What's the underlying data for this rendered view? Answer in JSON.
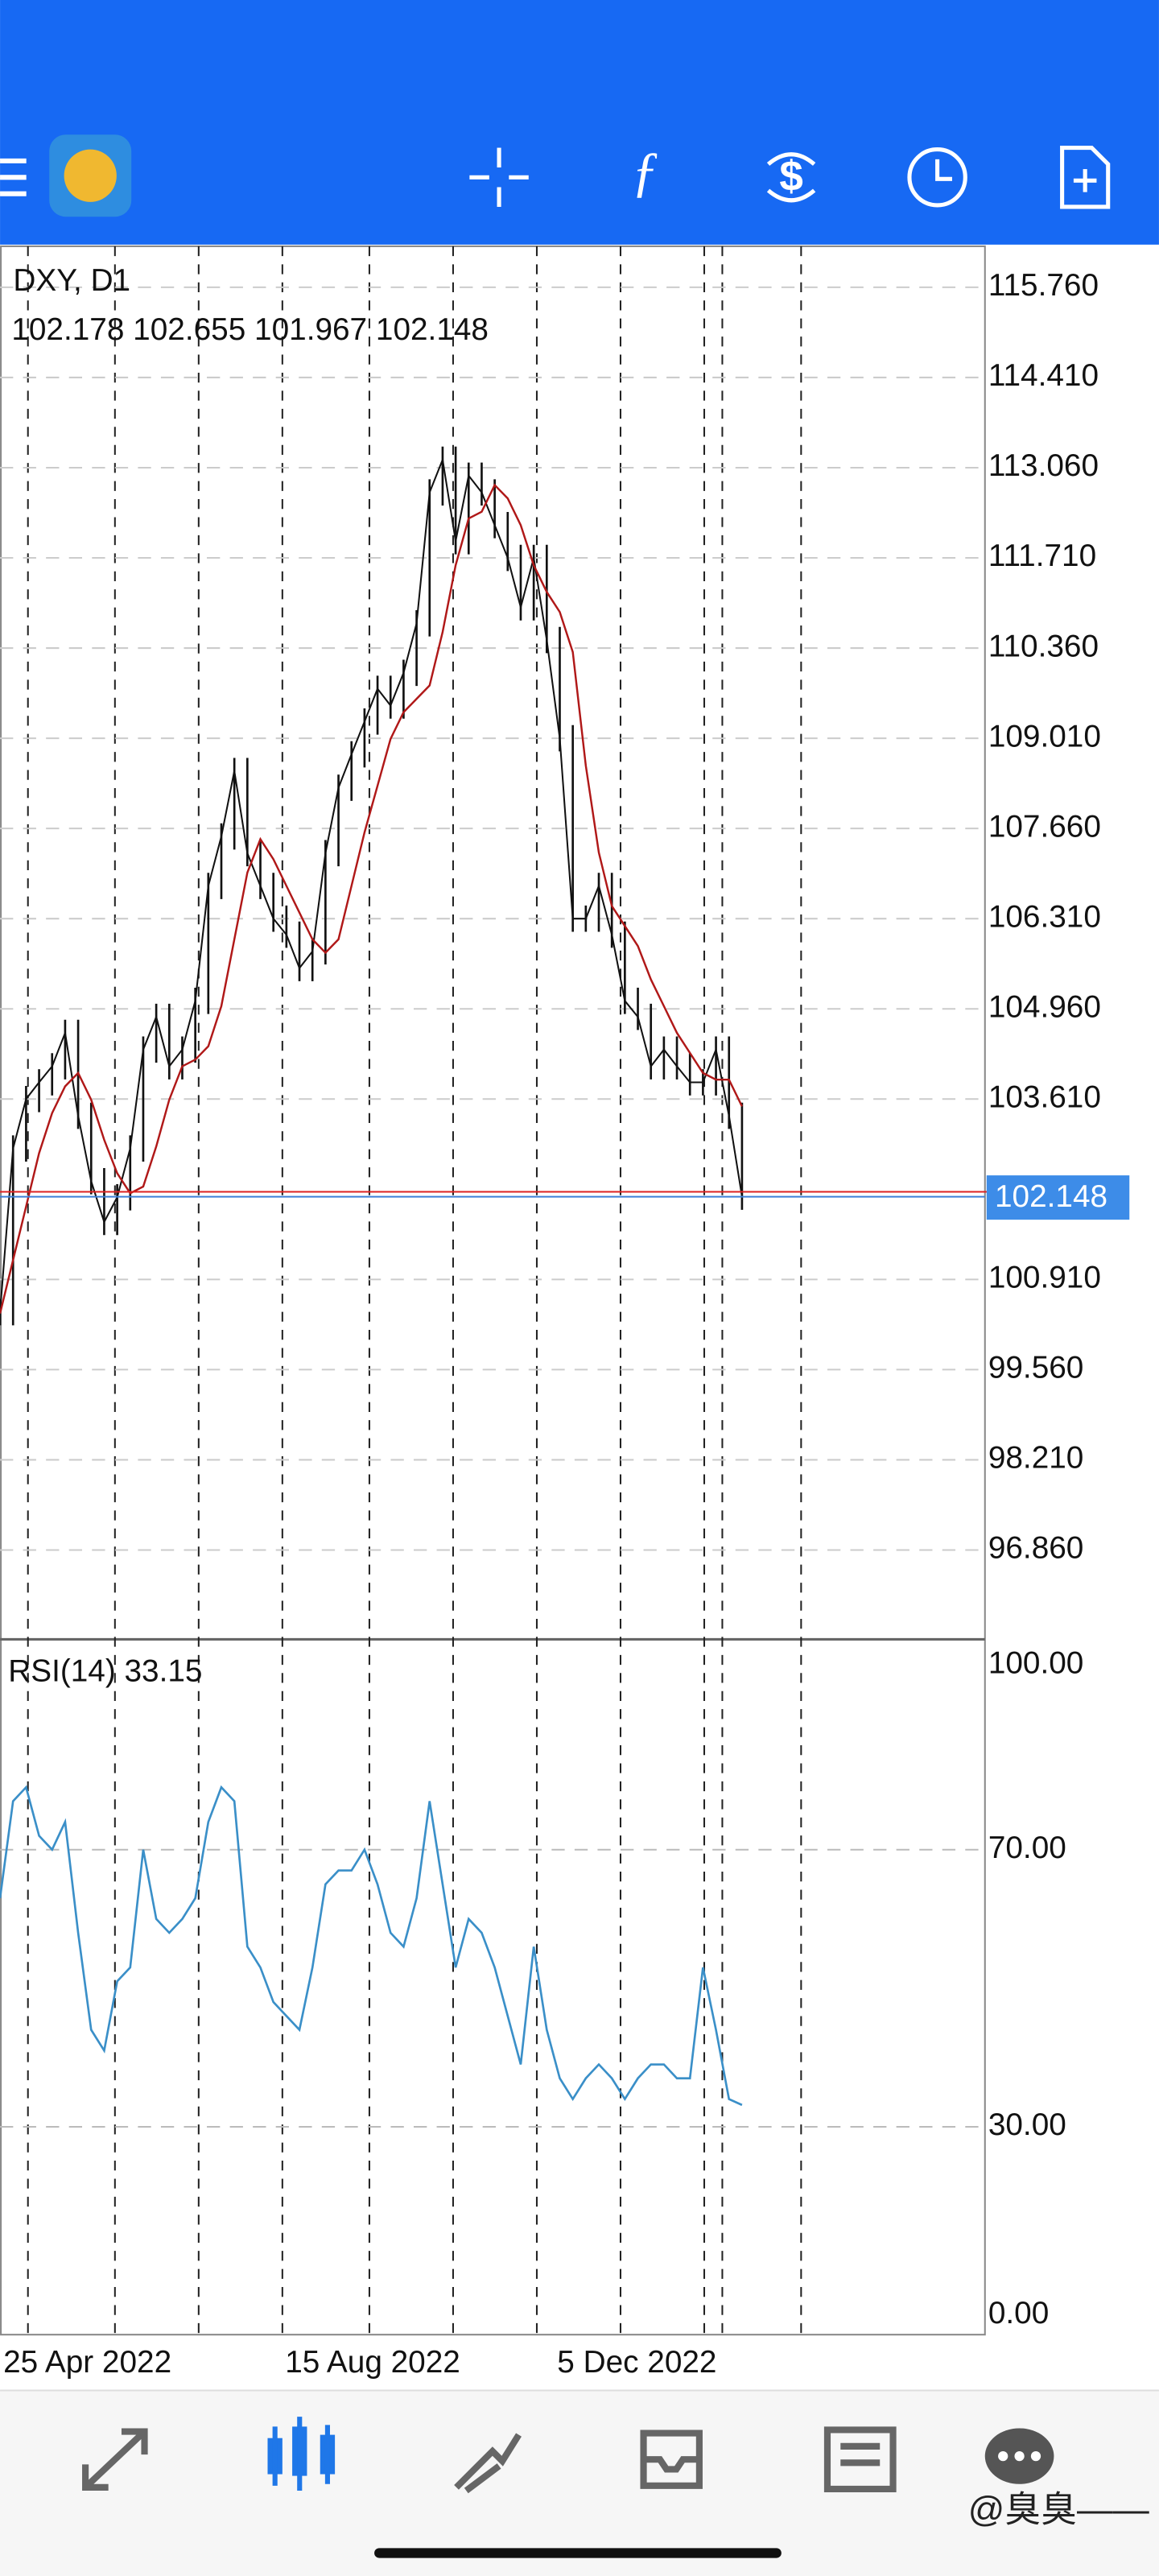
{
  "chart": {
    "symbol": "DXY, D1",
    "ohlc": [
      "102.178",
      "102.655",
      "101.967",
      "102.148"
    ],
    "ylim": [
      95.535,
      116.374
    ],
    "price_ticks": [
      {
        "value": 115.76,
        "label": "115.760"
      },
      {
        "value": 114.41,
        "label": "114.410"
      },
      {
        "value": 113.06,
        "label": "113.060"
      },
      {
        "value": 111.71,
        "label": "111.710"
      },
      {
        "value": 110.36,
        "label": "110.360"
      },
      {
        "value": 109.01,
        "label": "109.010"
      },
      {
        "value": 107.66,
        "label": "107.660"
      },
      {
        "value": 106.31,
        "label": "106.310"
      },
      {
        "value": 104.96,
        "label": "104.960"
      },
      {
        "value": 103.61,
        "label": "103.610"
      },
      {
        "value": 100.91,
        "label": "100.910"
      },
      {
        "value": 99.56,
        "label": "99.560"
      },
      {
        "value": 98.21,
        "label": "98.210"
      },
      {
        "value": 96.86,
        "label": "96.860"
      }
    ],
    "closes": [
      100.42,
      102.87,
      103.61,
      103.86,
      104.1,
      104.6,
      103.36,
      102.38,
      101.77,
      102.14,
      102.87,
      104.35,
      104.84,
      104.1,
      104.35,
      105.08,
      106.8,
      107.54,
      108.52,
      107.29,
      106.8,
      106.31,
      106.07,
      105.57,
      105.82,
      107.29,
      108.27,
      108.77,
      109.26,
      109.75,
      109.5,
      109.99,
      110.73,
      112.69,
      113.18,
      111.96,
      112.94,
      112.69,
      112.2,
      111.71,
      110.97,
      111.71,
      110.48,
      109.01,
      106.31,
      106.31,
      106.8,
      106.07,
      105.08,
      104.84,
      104.1,
      104.35,
      104.1,
      103.86,
      103.86,
      104.35,
      103.36,
      102.148
    ],
    "ma": [
      100.4,
      101.2,
      102.0,
      102.8,
      103.4,
      103.8,
      104.0,
      103.6,
      103.0,
      102.5,
      102.2,
      102.3,
      102.9,
      103.6,
      104.1,
      104.2,
      104.4,
      105.0,
      106.0,
      107.0,
      107.5,
      107.2,
      106.8,
      106.4,
      106.0,
      105.8,
      106.0,
      106.8,
      107.6,
      108.3,
      109.0,
      109.4,
      109.6,
      109.8,
      110.6,
      111.6,
      112.3,
      112.4,
      112.8,
      112.6,
      112.2,
      111.6,
      111.2,
      110.9,
      110.3,
      108.6,
      107.3,
      106.5,
      106.2,
      105.9,
      105.4,
      105.0,
      104.6,
      104.3,
      104.0,
      103.9,
      103.9,
      103.5
    ],
    "rsi": {
      "label": "RSI(14) 33.15",
      "ylim": [
        0,
        100
      ],
      "yticks": [
        {
          "value": 100,
          "label": "100.00"
        },
        {
          "value": 70,
          "label": "70.00"
        },
        {
          "value": 30,
          "label": "30.00"
        },
        {
          "value": 0,
          "label": "0.00"
        }
      ],
      "values": [
        63,
        77,
        79,
        72,
        70,
        74,
        58,
        44,
        41,
        51,
        53,
        70,
        60,
        58,
        60,
        63,
        74,
        79,
        77,
        56,
        53,
        48,
        46,
        44,
        53,
        65,
        67,
        67,
        70,
        65,
        58,
        56,
        63,
        77,
        65,
        53,
        60,
        58,
        53,
        46,
        39,
        56,
        44,
        37,
        34,
        37,
        39,
        37,
        34,
        37,
        39,
        39,
        37,
        37,
        53,
        44,
        34,
        33.15
      ]
    },
    "x_labels": [
      "25 Apr 2022",
      "15 Aug 2022",
      "5 Dec 2022"
    ]
  },
  "watermark": "@臭臭——"
}
